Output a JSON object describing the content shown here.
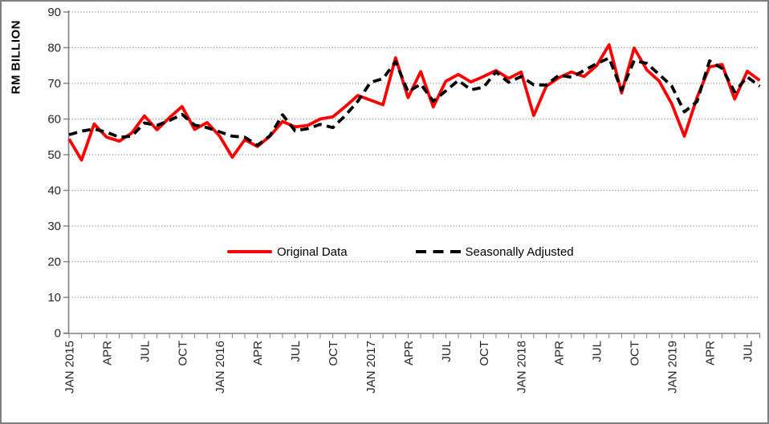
{
  "window": {
    "background": "#ffffff",
    "border_color": "#7f7f7f"
  },
  "axis": {
    "ylabel": "RM BILLION",
    "axis_color": "#808080",
    "gridline_color": "#7f7f7f",
    "tick_label_color": "#262626"
  },
  "legend": {
    "original_label": "Original Data",
    "adjusted_label": "Seasonally Adjusted"
  },
  "chart_data": {
    "type": "line",
    "title": "",
    "ylabel": "RM BILLION",
    "xlabel": "",
    "ylim": [
      0,
      90
    ],
    "y_ticks": [
      0,
      10,
      20,
      30,
      40,
      50,
      60,
      70,
      80,
      90
    ],
    "grid": "horizontal-dotted",
    "legend_position": "inside-bottom-center",
    "x_tick_label_every": 3,
    "months": [
      "JAN 2015",
      "FEB",
      "MAR",
      "APR",
      "MAY",
      "JUN",
      "JUL",
      "AUG",
      "SEP",
      "OCT",
      "NOV",
      "DEC",
      "JAN 2016",
      "FEB",
      "MAR",
      "APR",
      "MAY",
      "JUN",
      "JUL",
      "AUG",
      "SEP",
      "OCT",
      "NOV",
      "DEC",
      "JAN 2017",
      "FEB",
      "MAR",
      "APR",
      "MAY",
      "JUN",
      "JUL",
      "AUG",
      "SEP",
      "OCT",
      "NOV",
      "DEC",
      "JAN 2018",
      "FEB",
      "MAR",
      "APR",
      "MAY",
      "JUN",
      "JUL",
      "AUG",
      "SEP",
      "OCT",
      "NOV",
      "DEC",
      "JAN 2019",
      "FEB",
      "MAR",
      "APR",
      "MAY",
      "JUN",
      "JUL",
      "AUG"
    ],
    "series": [
      {
        "name": "Original Data",
        "color": "#ff0000",
        "line_style": "solid",
        "values": [
          54.4,
          48.5,
          58.6,
          54.9,
          53.8,
          56.1,
          60.9,
          57.0,
          60.4,
          63.5,
          57.1,
          59.0,
          55.2,
          49.3,
          54.2,
          52.3,
          55.2,
          59.3,
          57.8,
          58.2,
          60.0,
          60.6,
          63.5,
          66.6,
          65.3,
          64.0,
          77.2,
          66.0,
          73.3,
          63.4,
          70.6,
          72.5,
          70.4,
          71.9,
          73.6,
          71.4,
          73.2,
          61.0,
          69.2,
          71.6,
          73.2,
          71.9,
          74.9,
          80.8,
          67.3,
          79.9,
          73.8,
          70.6,
          64.2,
          55.2,
          66.0,
          74.6,
          75.3,
          65.6,
          73.4,
          70.8
        ]
      },
      {
        "name": "Seasonally Adjusted",
        "color": "#000000",
        "line_style": "dashed",
        "values": [
          55.6,
          56.6,
          57.2,
          56.3,
          54.9,
          55.2,
          58.9,
          58.2,
          59.6,
          61.3,
          58.3,
          57.6,
          56.4,
          55.2,
          54.9,
          52.6,
          55.3,
          61.2,
          56.7,
          57.3,
          58.5,
          57.6,
          61.0,
          65.0,
          70.3,
          71.3,
          76.1,
          67.6,
          69.8,
          65.0,
          67.9,
          70.8,
          68.2,
          68.9,
          73.2,
          70.3,
          71.9,
          69.6,
          69.5,
          72.3,
          71.7,
          73.6,
          75.5,
          77.1,
          68.1,
          76.4,
          75.6,
          72.5,
          69.2,
          62.0,
          64.9,
          76.3,
          74.2,
          67.6,
          71.8,
          69.2
        ]
      }
    ]
  }
}
